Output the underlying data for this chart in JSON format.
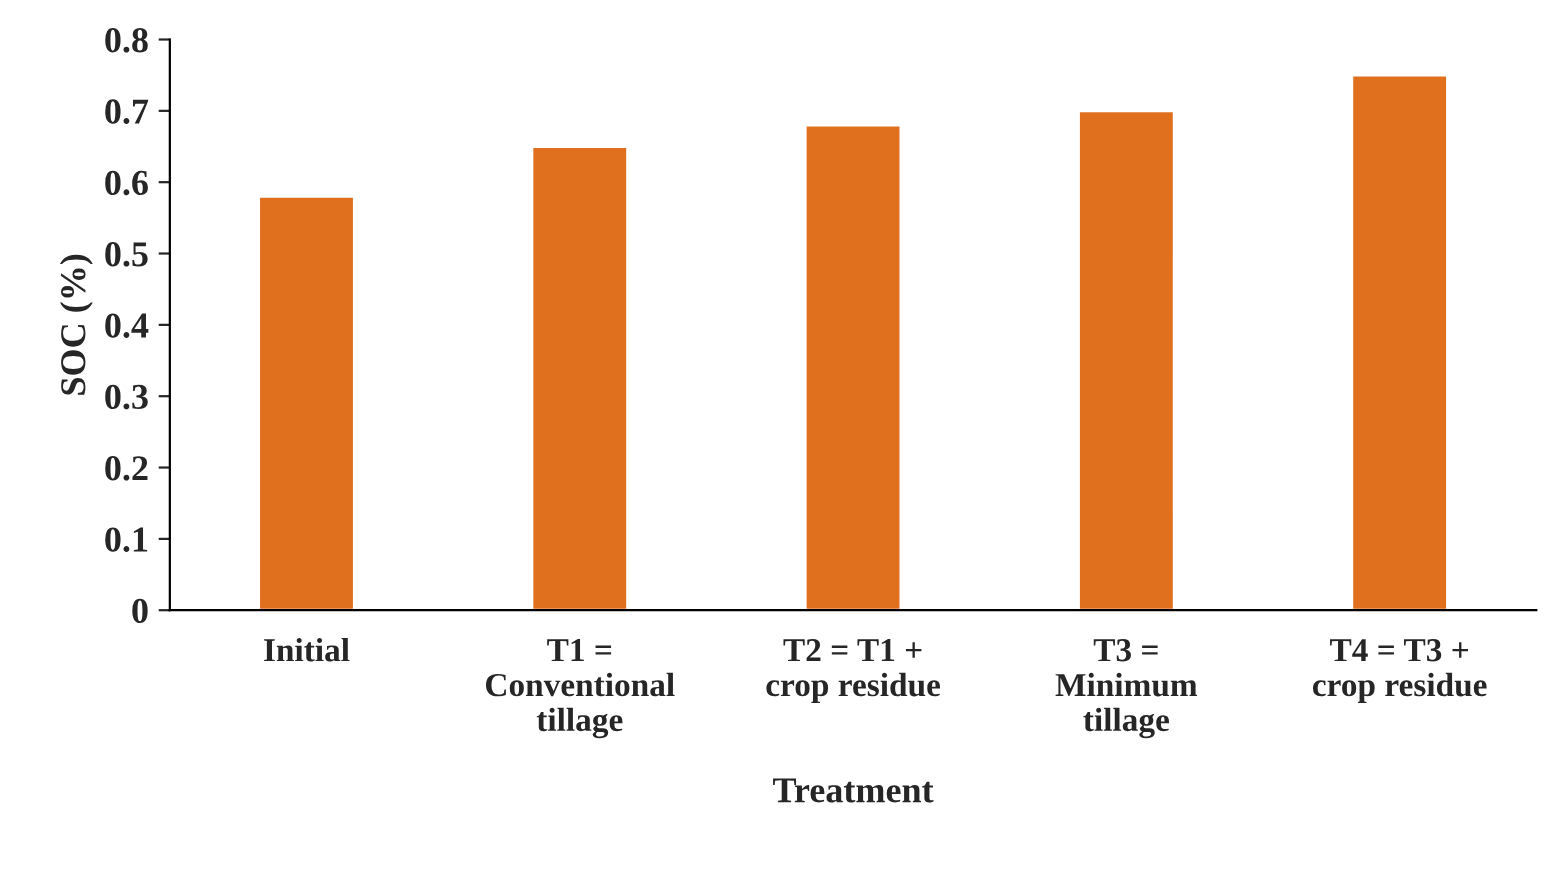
{
  "chart_data": {
    "type": "bar",
    "xlabel": "Treatment",
    "ylabel": "SOC (%)",
    "categories": [
      "Initial",
      "T1 =\nConventional\ntillage",
      "T2 = T1 +\ncrop residue",
      "T3 =\nMinimum\ntillage",
      "T4 = T3 +\ncrop residue"
    ],
    "values": [
      0.58,
      0.65,
      0.68,
      0.7,
      0.75
    ],
    "color": "#e0701e",
    "ylim": [
      0,
      0.8
    ],
    "yticks": [
      {
        "value": 0,
        "label": "0"
      },
      0.1,
      0.2,
      0.3,
      0.4,
      0.5,
      0.6,
      0.7,
      0.8
    ],
    "grid": false
  }
}
